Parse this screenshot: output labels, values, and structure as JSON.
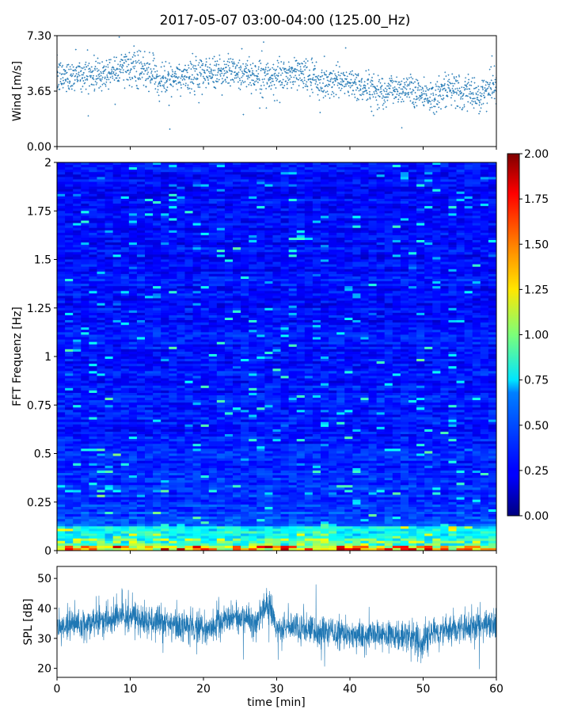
{
  "title": "2017-05-07 03:00-04:00 (125.00_Hz)",
  "chart_data": [
    {
      "type": "scatter",
      "name": "wind",
      "ylabel": "Wind [m/s]",
      "xlim": [
        0,
        60
      ],
      "ylim": [
        0,
        7.3
      ],
      "yticks": [
        "0.00",
        "3.65",
        "7.30"
      ],
      "color": "#1f77b4",
      "trend": {
        "x": [
          0,
          3,
          6,
          9,
          12,
          15,
          18,
          21,
          24,
          27,
          30,
          33,
          36,
          39,
          42,
          45,
          48,
          51,
          54,
          57,
          60
        ],
        "y": [
          4.5,
          4.8,
          4.7,
          5.3,
          4.9,
          4.4,
          4.6,
          4.8,
          5.0,
          4.7,
          4.5,
          4.9,
          4.2,
          4.4,
          3.8,
          3.7,
          3.9,
          3.3,
          3.7,
          3.4,
          3.9
        ]
      }
    },
    {
      "type": "heatmap",
      "name": "spectrogram",
      "ylabel": "FFT Frequenz [Hz]",
      "xlim": [
        0,
        60
      ],
      "ylim": [
        0,
        2
      ],
      "yticks": [
        "0",
        "0.25",
        "0.5",
        "0.75",
        "1",
        "1.25",
        "1.5",
        "1.75",
        "2"
      ],
      "colormap": "jet",
      "colorbar": {
        "range": [
          0,
          2
        ],
        "ticks": [
          "0.00",
          "0.25",
          "0.50",
          "0.75",
          "1.00",
          "1.25",
          "1.50",
          "1.75",
          "2.00"
        ]
      }
    },
    {
      "type": "line",
      "name": "spl",
      "ylabel": "SPL [dB]",
      "xlabel": "time [min]",
      "xlim": [
        0,
        60
      ],
      "ylim": [
        17,
        54
      ],
      "yticks": [
        "20",
        "30",
        "40",
        "50"
      ],
      "xticks": [
        "0",
        "10",
        "20",
        "30",
        "40",
        "50",
        "60"
      ],
      "color": "#1f77b4",
      "trend": {
        "x": [
          0,
          3,
          6,
          9,
          12,
          15,
          18,
          21,
          24,
          27,
          29,
          30,
          33,
          36,
          39,
          42,
          45,
          48,
          50,
          51,
          54,
          57,
          60
        ],
        "y": [
          34,
          35,
          36,
          38,
          36,
          35,
          34,
          33,
          38,
          35,
          42,
          33,
          34,
          32,
          32,
          31,
          31,
          31,
          29,
          32,
          33,
          34,
          35
        ]
      }
    }
  ]
}
